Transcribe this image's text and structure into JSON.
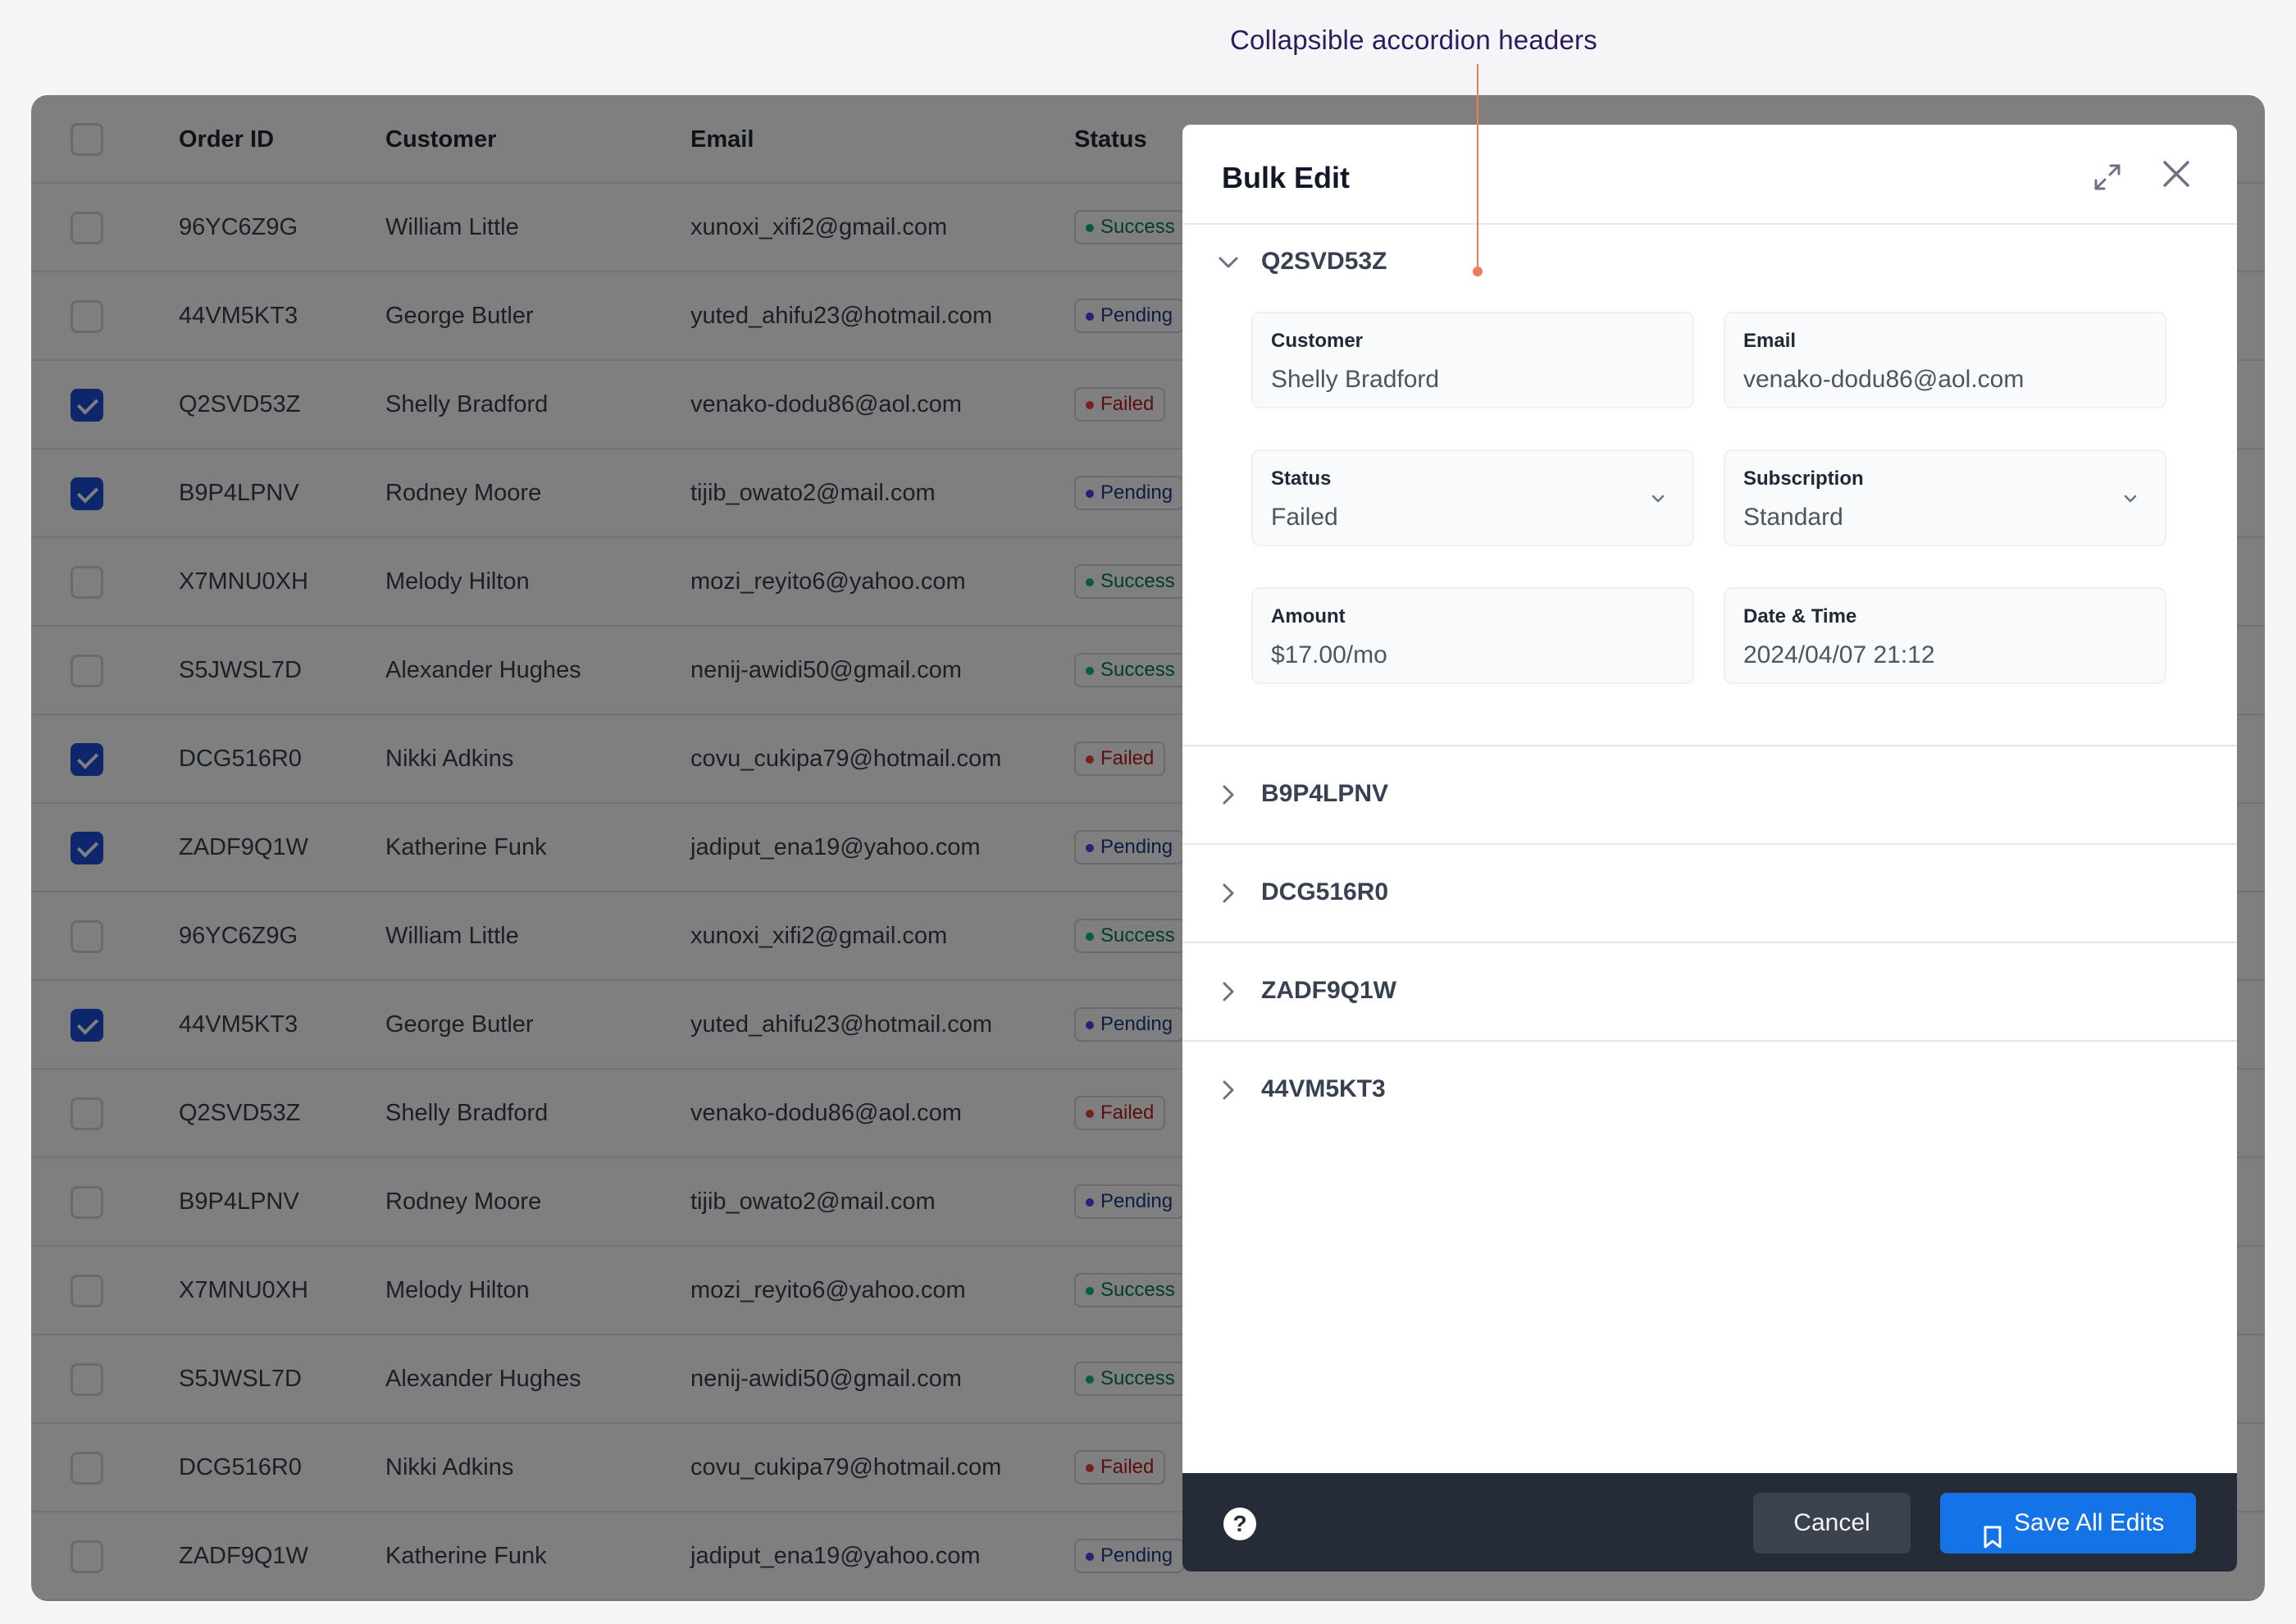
{
  "annotation": {
    "text": "Collapsible accordion headers"
  },
  "table": {
    "columns": {
      "order_id": "Order ID",
      "customer": "Customer",
      "email": "Email",
      "status": "Status"
    },
    "rows": [
      {
        "checked": false,
        "order_id": "96YC6Z9G",
        "customer": "William Little",
        "email": "xunoxi_xifi2@gmail.com",
        "status": "Success"
      },
      {
        "checked": false,
        "order_id": "44VM5KT3",
        "customer": "George Butler",
        "email": "yuted_ahifu23@hotmail.com",
        "status": "Pending"
      },
      {
        "checked": true,
        "order_id": "Q2SVD53Z",
        "customer": "Shelly Bradford",
        "email": "venako-dodu86@aol.com",
        "status": "Failed"
      },
      {
        "checked": true,
        "order_id": "B9P4LPNV",
        "customer": "Rodney Moore",
        "email": "tijib_owato2@mail.com",
        "status": "Pending"
      },
      {
        "checked": false,
        "order_id": "X7MNU0XH",
        "customer": "Melody Hilton",
        "email": "mozi_reyito6@yahoo.com",
        "status": "Success"
      },
      {
        "checked": false,
        "order_id": "S5JWSL7D",
        "customer": "Alexander Hughes",
        "email": "nenij-awidi50@gmail.com",
        "status": "Success"
      },
      {
        "checked": true,
        "order_id": "DCG516R0",
        "customer": "Nikki Adkins",
        "email": "covu_cukipa79@hotmail.com",
        "status": "Failed"
      },
      {
        "checked": true,
        "order_id": "ZADF9Q1W",
        "customer": "Katherine Funk",
        "email": "jadiput_ena19@yahoo.com",
        "status": "Pending"
      },
      {
        "checked": false,
        "order_id": "96YC6Z9G",
        "customer": "William Little",
        "email": "xunoxi_xifi2@gmail.com",
        "status": "Success"
      },
      {
        "checked": true,
        "order_id": "44VM5KT3",
        "customer": "George Butler",
        "email": "yuted_ahifu23@hotmail.com",
        "status": "Pending"
      },
      {
        "checked": false,
        "order_id": "Q2SVD53Z",
        "customer": "Shelly Bradford",
        "email": "venako-dodu86@aol.com",
        "status": "Failed"
      },
      {
        "checked": false,
        "order_id": "B9P4LPNV",
        "customer": "Rodney Moore",
        "email": "tijib_owato2@mail.com",
        "status": "Pending"
      },
      {
        "checked": false,
        "order_id": "X7MNU0XH",
        "customer": "Melody Hilton",
        "email": "mozi_reyito6@yahoo.com",
        "status": "Success"
      },
      {
        "checked": false,
        "order_id": "S5JWSL7D",
        "customer": "Alexander Hughes",
        "email": "nenij-awidi50@gmail.com",
        "status": "Success"
      },
      {
        "checked": false,
        "order_id": "DCG516R0",
        "customer": "Nikki Adkins",
        "email": "covu_cukipa79@hotmail.com",
        "status": "Failed"
      },
      {
        "checked": false,
        "order_id": "ZADF9Q1W",
        "customer": "Katherine Funk",
        "email": "jadiput_ena19@yahoo.com",
        "status": "Pending"
      }
    ]
  },
  "modal": {
    "title": "Bulk Edit",
    "expanded": {
      "id": "Q2SVD53Z",
      "fields": {
        "customer": {
          "label": "Customer",
          "value": "Shelly Bradford"
        },
        "email": {
          "label": "Email",
          "value": "venako-dodu86@aol.com"
        },
        "status": {
          "label": "Status",
          "value": "Failed"
        },
        "subscription": {
          "label": "Subscription",
          "value": "Standard"
        },
        "amount": {
          "label": "Amount",
          "value": "$17.00/mo"
        },
        "datetime": {
          "label": "Date & Time",
          "value": "2024/04/07 21:12"
        }
      }
    },
    "collapsed": [
      "B9P4LPNV",
      "DCG516R0",
      "ZADF9Q1W",
      "44VM5KT3"
    ],
    "footer": {
      "help": "?",
      "cancel": "Cancel",
      "save": "Save All Edits"
    }
  },
  "colors": {
    "primary": "#1473e6",
    "footer_bg": "#252b37",
    "checkbox_checked": "#1d4ed8",
    "status_success": "#10b981",
    "status_pending": "#4f46e5",
    "status_failed": "#ef4444",
    "annotation": "#f07a5a"
  },
  "icons": {
    "expand": "expand-icon",
    "close": "close-icon",
    "chevron_down": "chevron-down-icon",
    "chevron_right": "chevron-right-icon",
    "help": "help-icon",
    "bookmark": "bookmark-icon"
  }
}
